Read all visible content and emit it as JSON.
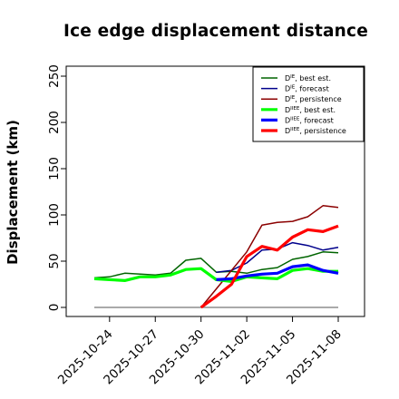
{
  "chart_data": {
    "type": "line",
    "title": "Ice edge displacement distance",
    "xlabel": "",
    "ylabel": "Displacement (km)",
    "ylim": [
      0,
      260
    ],
    "y_ticks": [
      0,
      50,
      100,
      150,
      200,
      250
    ],
    "x_ticks": [
      {
        "label": "2025-10-24",
        "color": "#000000"
      },
      {
        "label": "2025-10-27",
        "color": "#000000"
      },
      {
        "label": "2025-10-30",
        "color": "#228B22"
      },
      {
        "label": "2025-11-02",
        "color": "#000000"
      },
      {
        "label": "2025-11-05",
        "color": "#000000"
      },
      {
        "label": "2025-11-08",
        "color": "#000000"
      }
    ],
    "x": [
      "2025-10-23",
      "2025-10-24",
      "2025-10-25",
      "2025-10-26",
      "2025-10-27",
      "2025-10-28",
      "2025-10-29",
      "2025-10-30",
      "2025-10-31",
      "2025-11-01",
      "2025-11-02",
      "2025-11-03",
      "2025-11-04",
      "2025-11-05",
      "2025-11-06",
      "2025-11-07",
      "2025-11-08"
    ],
    "grid": false,
    "legend_position": "top-right",
    "reference_line": {
      "value": 0,
      "color": "#777777"
    },
    "series": [
      {
        "name": "D^IE, best est.",
        "color": "#006400",
        "width": 1.5,
        "values": [
          32,
          33,
          37,
          36,
          35,
          37,
          51,
          53,
          38,
          39,
          37,
          41,
          43,
          52,
          55,
          60,
          59
        ]
      },
      {
        "name": "D^IE, forecast",
        "color": "#00008B",
        "width": 1.5,
        "values": [
          null,
          null,
          null,
          null,
          null,
          null,
          null,
          null,
          38,
          40,
          48,
          62,
          63,
          70,
          67,
          62,
          65
        ]
      },
      {
        "name": "D^IE, persistence",
        "color": "#8B0000",
        "width": 1.5,
        "values": [
          null,
          null,
          null,
          null,
          null,
          null,
          null,
          0,
          20,
          40,
          60,
          89,
          92,
          93,
          98,
          110,
          108
        ]
      },
      {
        "name": "D^IIEE, best est.",
        "color": "#00FF00",
        "width": 3.2,
        "values": [
          31,
          30,
          29,
          33,
          33,
          35,
          41,
          42,
          30,
          28,
          33,
          32,
          31,
          40,
          42,
          39,
          39
        ]
      },
      {
        "name": "D^IIEE, forecast",
        "color": "#0000FF",
        "width": 3.2,
        "values": [
          null,
          null,
          null,
          null,
          null,
          null,
          null,
          null,
          30,
          31,
          34,
          36,
          37,
          44,
          46,
          40,
          37
        ]
      },
      {
        "name": "D^IIEE, persistence",
        "color": "#FF0000",
        "width": 3.2,
        "values": [
          null,
          null,
          null,
          null,
          null,
          null,
          null,
          0,
          12,
          25,
          55,
          66,
          62,
          76,
          84,
          82,
          88
        ]
      }
    ]
  }
}
